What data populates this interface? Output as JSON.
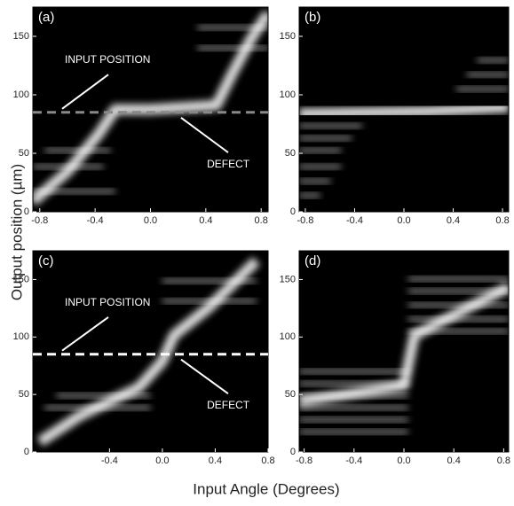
{
  "x_label": "Input Angle (Degrees)",
  "y_label": "Output position (µm)",
  "chart_data": [
    {
      "type": "heatmap",
      "panel_label": "(a)",
      "xlim": [
        -0.85,
        0.85
      ],
      "ylim": [
        0,
        175
      ],
      "xticks": [
        -0.8,
        -0.4,
        {
          "value": 0,
          "label": "0.0"
        },
        0.4,
        0.8
      ],
      "yticks": [
        0,
        50,
        100,
        150
      ],
      "input_position": 85,
      "line_color": "#888888",
      "annotations": [
        "INPUT POSITION",
        "DEFECT"
      ]
    },
    {
      "type": "heatmap",
      "panel_label": "(b)",
      "xlim": [
        -0.85,
        0.85
      ],
      "ylim": [
        0,
        175
      ],
      "xticks": [
        -0.8,
        -0.4,
        {
          "value": 0,
          "label": "0.0"
        },
        0.4,
        0.8
      ],
      "yticks": [
        0,
        50,
        100,
        150
      ]
    },
    {
      "type": "heatmap",
      "panel_label": "(c)",
      "xlim": [
        -0.98,
        0.8
      ],
      "ylim": [
        0,
        175
      ],
      "xticks": [
        -0.4,
        {
          "value": 0,
          "label": "0.0"
        },
        0.4,
        0.8
      ],
      "yticks": [
        0,
        50,
        100,
        150
      ],
      "input_position": 85,
      "line_color": "#ffffff",
      "annotations": [
        "INPUT POSITION",
        "DEFECT"
      ]
    },
    {
      "type": "heatmap",
      "panel_label": "(d)",
      "xlim": [
        -0.84,
        0.84
      ],
      "ylim": [
        0,
        175
      ],
      "xticks": [
        -0.8,
        -0.4,
        {
          "value": 0,
          "label": "0.0"
        },
        0.4,
        0.8
      ],
      "yticks": [
        0,
        50,
        100,
        150
      ]
    }
  ]
}
